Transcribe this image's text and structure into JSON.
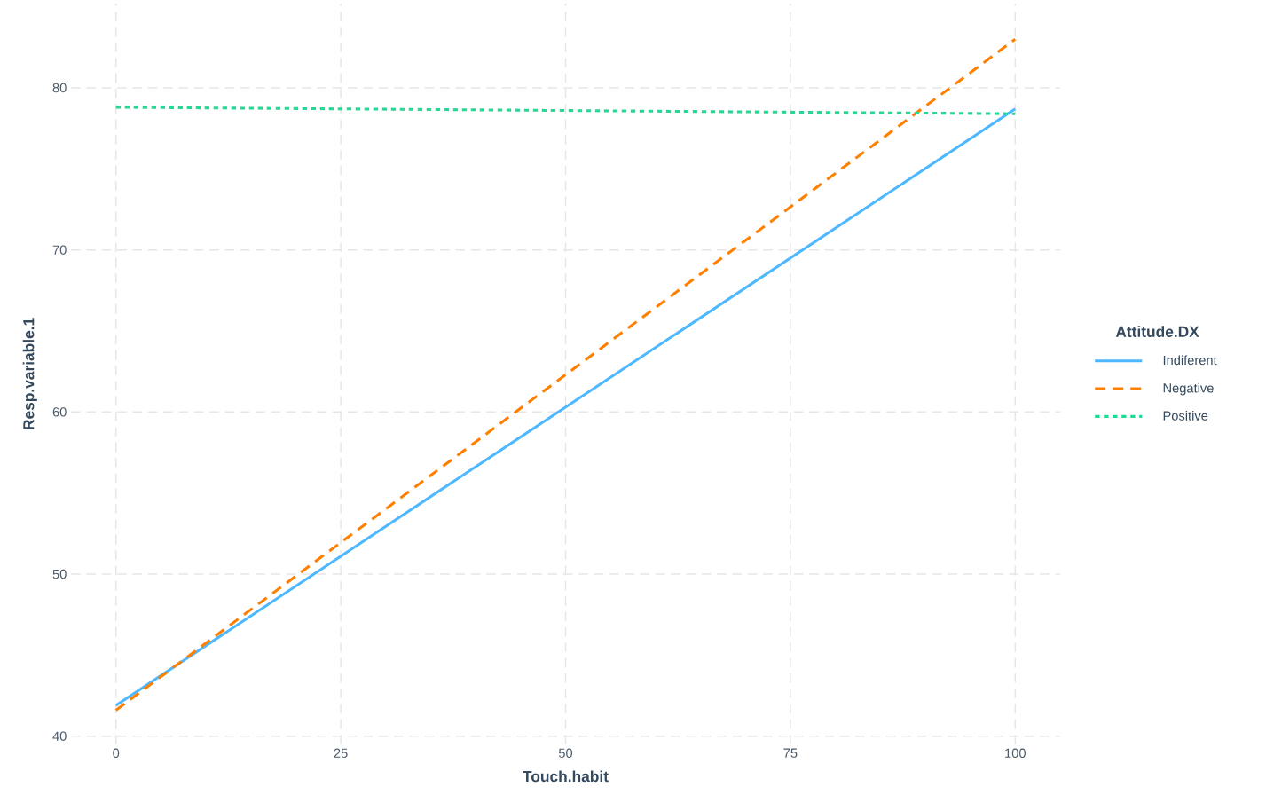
{
  "chart_data": {
    "type": "line",
    "xlabel": "Touch.habit",
    "ylabel": "Resp.variable.1",
    "legend_title": "Attitude.DX",
    "x": [
      0,
      100
    ],
    "series": [
      {
        "name": "Indiferent",
        "color": "#4db8ff",
        "line_style": "solid",
        "values": [
          41.9,
          78.7
        ]
      },
      {
        "name": "Negative",
        "color": "#ff7f00",
        "line_style": "dashed",
        "values": [
          41.6,
          83.0
        ]
      },
      {
        "name": "Positive",
        "color": "#1fdc94",
        "line_style": "dotted",
        "values": [
          78.8,
          78.4
        ]
      }
    ],
    "xlim": [
      -5,
      105
    ],
    "ylim": [
      39.5,
      85.2
    ],
    "xticks": [
      0,
      25,
      50,
      75,
      100
    ],
    "yticks": [
      40,
      50,
      60,
      70,
      80
    ],
    "grid": true,
    "legend": "right",
    "marker": "none"
  }
}
